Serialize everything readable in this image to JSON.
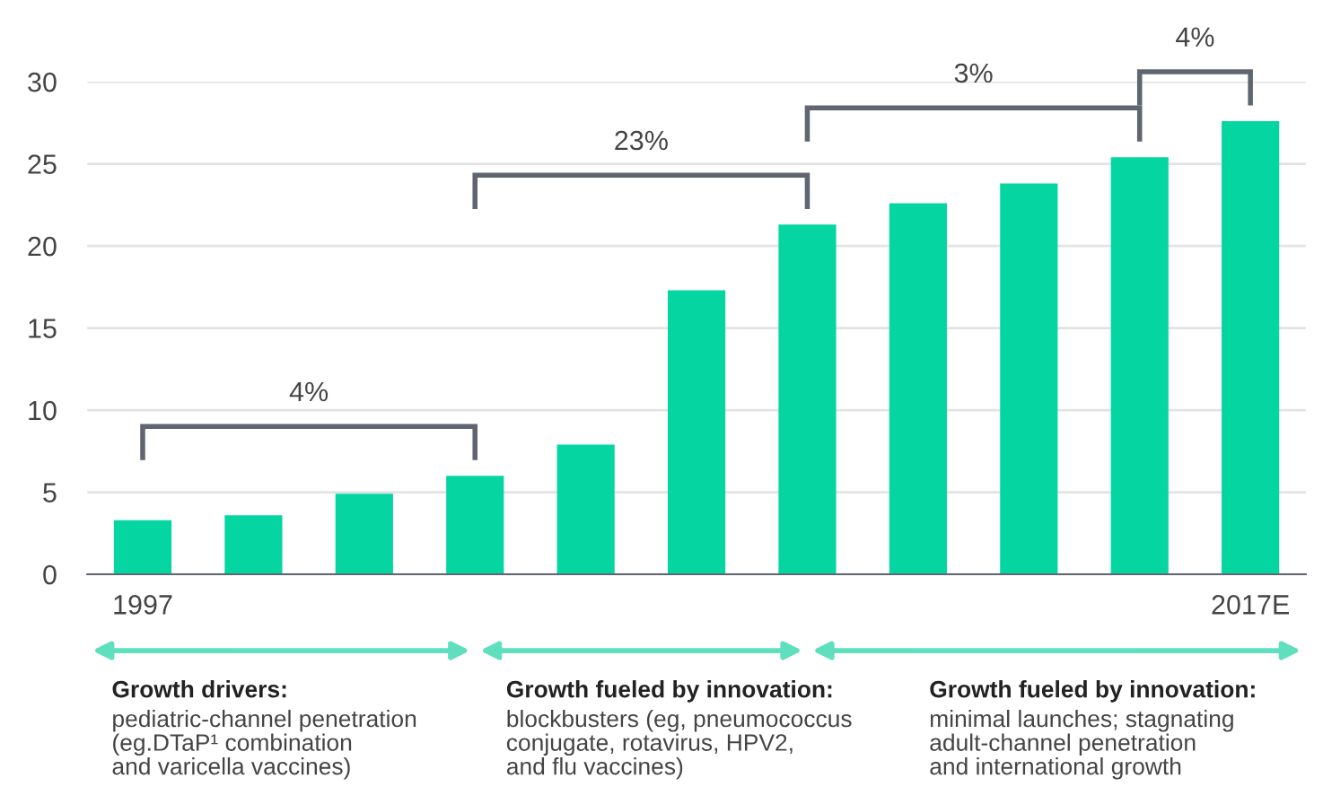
{
  "chart_data": {
    "type": "bar",
    "categories": [
      "1997",
      null,
      null,
      null,
      null,
      null,
      null,
      null,
      null,
      null,
      "2017E"
    ],
    "values": [
      3.3,
      3.6,
      4.9,
      6.0,
      7.9,
      17.3,
      21.3,
      22.6,
      23.8,
      25.4,
      27.6
    ],
    "color": "#05d5a0",
    "ylim": [
      0,
      30
    ],
    "yticks": [
      0,
      5,
      10,
      15,
      20,
      25,
      30
    ],
    "grid": "y",
    "annotations": [
      "4%",
      "23%",
      "3%",
      "4%",
      "Growth drivers:",
      "pediatric-channel penetration\n(eg.DTaP¹ combination\nand varicella vaccines)",
      "Growth fueled by innovation:",
      "blockbusters (eg, pneumococcus\nconjugate, rotavirus, HPV2,\nand flu vaccines)",
      "Growth fueled by innovation:",
      "minimal launches; stagnating\nadult-channel penetration\nand international growth"
    ]
  }
}
